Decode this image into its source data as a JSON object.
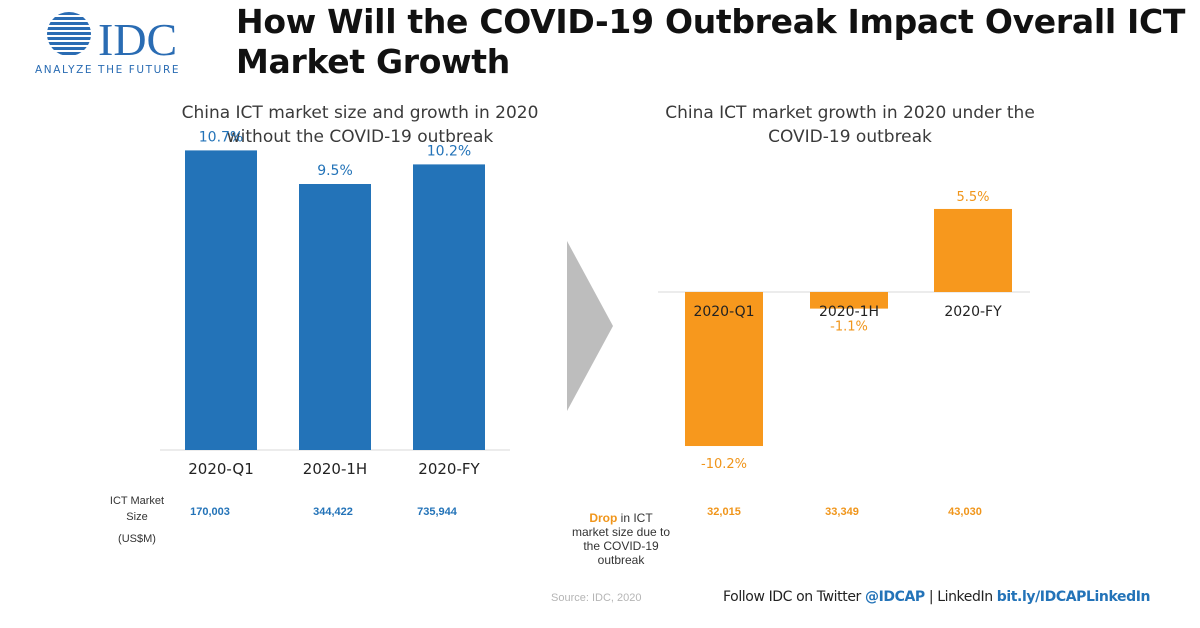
{
  "colors": {
    "blue": "#2373b8",
    "orange": "#f7981d",
    "arrow": "#bdbdbd",
    "logo_blue": "#2a6cb3"
  },
  "logo": {
    "brand": "IDC",
    "tagline": "ANALYZE THE FUTURE"
  },
  "header": {
    "title": "How Will the COVID-19 Outbreak Impact Overall ICT Market Growth"
  },
  "chart_data": [
    {
      "type": "bar",
      "title": "China ICT market size and growth in 2020 without the COVID-19 outbreak",
      "categories": [
        "2020-Q1",
        "2020-1H",
        "2020-FY"
      ],
      "values": [
        10.7,
        9.5,
        10.2
      ],
      "data_labels": [
        "10.7%",
        "9.5%",
        "10.2%"
      ],
      "unit": "%",
      "ylim": [
        0,
        12
      ],
      "color": "#2373b8",
      "xlabel": "",
      "ylabel": ""
    },
    {
      "type": "bar",
      "title": "China ICT market growth in 2020 under the COVID-19 outbreak",
      "categories": [
        "2020-Q1",
        "2020-1H",
        "2020-FY"
      ],
      "values": [
        -10.2,
        -1.1,
        5.5
      ],
      "data_labels": [
        "-10.2%",
        "-1.1%",
        "5.5%"
      ],
      "unit": "%",
      "ylim": [
        -12,
        7
      ],
      "color": "#f7981d",
      "xlabel": "",
      "ylabel": ""
    }
  ],
  "table": {
    "market_size_label_line1": "ICT Market",
    "market_size_label_line2": "Size",
    "market_size_label_line3": "(US$M)",
    "market_size": [
      "170,003",
      "344,422",
      "735,944"
    ],
    "drop_label_bold": "Drop",
    "drop_label_rest1": " in ICT",
    "drop_label_rest2": "market size due to",
    "drop_label_rest3": "the COVID-19",
    "drop_label_rest4": "outbreak",
    "drop": [
      "32,015",
      "33,349",
      "43,030"
    ]
  },
  "footer": {
    "source": "Source: IDC, 2020",
    "follow_text": "Follow IDC on Twitter ",
    "twitter_handle": "@IDCAP",
    "separator": " | LinkedIn ",
    "linkedin_url": "bit.ly/IDCAPLinkedIn"
  }
}
